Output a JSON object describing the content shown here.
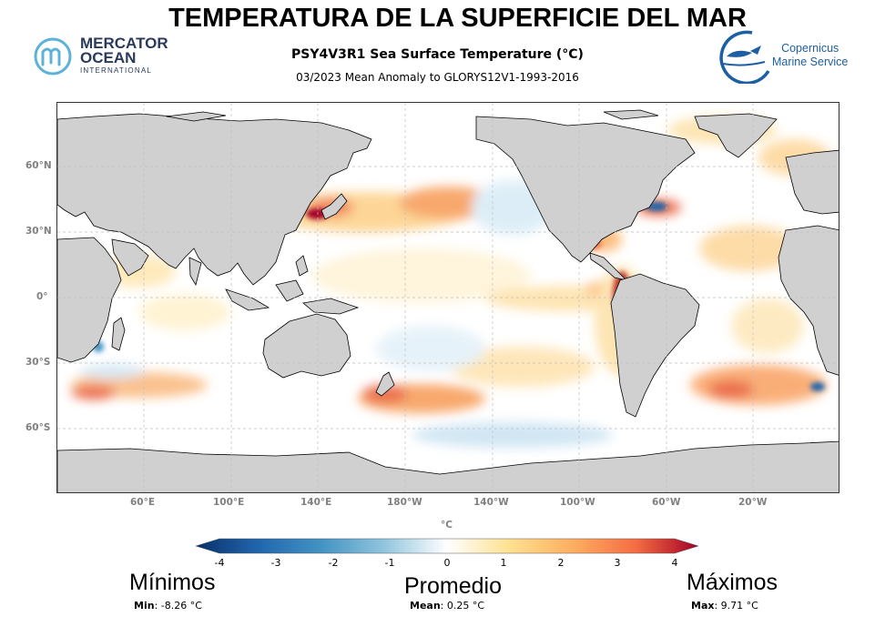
{
  "header": {
    "title": "TEMPERATURA DE LA SUPERFICIE DEL MAR",
    "subtitle": "PSY4V3R1 Sea Surface Temperature (°C)",
    "subtitle2": "03/2023 Mean Anomaly to GLORYS12V1-1993-2016"
  },
  "logos": {
    "mercator": {
      "line1": "MERCATOR",
      "line2": "OCEAN",
      "line3": "INTERNATIONAL"
    },
    "copernicus": {
      "line1": "Copernicus",
      "line2": "Marine Service"
    }
  },
  "map": {
    "lat_labels": [
      "60°N",
      "30°N",
      "0°",
      "30°S",
      "60°S"
    ],
    "lon_labels": [
      "60°E",
      "100°E",
      "140°E",
      "180°W",
      "140°W",
      "100°W",
      "60°W",
      "20°W"
    ],
    "unit": "°C",
    "land_color": "#d0d0d0",
    "coast_color": "#000000"
  },
  "colorbar": {
    "ticks": [
      "-4",
      "-3",
      "-2",
      "-1",
      "0",
      "1",
      "2",
      "3",
      "4"
    ],
    "range": [
      -4,
      4
    ],
    "colors": [
      "#08306b",
      "#2166ac",
      "#4393c3",
      "#92c5de",
      "#ffffff",
      "#fee090",
      "#fdae61",
      "#f46d43",
      "#a50026"
    ]
  },
  "stats": {
    "min_title": "Mínimos",
    "mean_title": "Promedio",
    "max_title": "Máximos",
    "min_label": "Min",
    "min_value": ": -8.26 °C",
    "mean_label": "Mean",
    "mean_value": ": 0.25 °C",
    "max_label": "Max",
    "max_value": ": 9.71 °C"
  }
}
